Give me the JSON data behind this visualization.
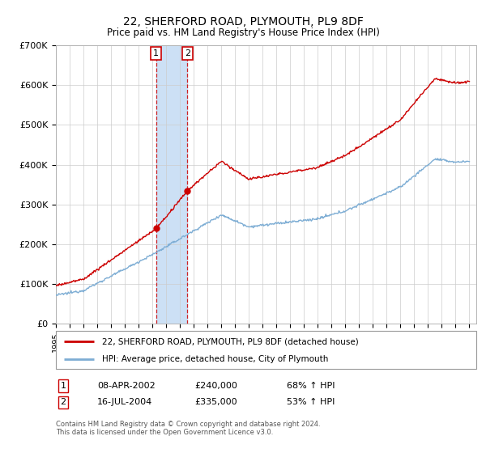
{
  "title": "22, SHERFORD ROAD, PLYMOUTH, PL9 8DF",
  "subtitle": "Price paid vs. HM Land Registry's House Price Index (HPI)",
  "legend_line1": "22, SHERFORD ROAD, PLYMOUTH, PL9 8DF (detached house)",
  "legend_line2": "HPI: Average price, detached house, City of Plymouth",
  "transaction1_date": "08-APR-2002",
  "transaction1_price": 240000,
  "transaction1_label": "68% ↑ HPI",
  "transaction2_date": "16-JUL-2004",
  "transaction2_price": 335000,
  "transaction2_label": "53% ↑ HPI",
  "footer": "Contains HM Land Registry data © Crown copyright and database right 2024.\nThis data is licensed under the Open Government Licence v3.0.",
  "hpi_color": "#7dadd4",
  "price_color": "#cc0000",
  "shading_color": "#cce0f5",
  "ylim": [
    0,
    700000
  ],
  "yticks": [
    0,
    100000,
    200000,
    300000,
    400000,
    500000,
    600000,
    700000
  ],
  "ytick_labels": [
    "£0",
    "£100K",
    "£200K",
    "£300K",
    "£400K",
    "£500K",
    "£600K",
    "£700K"
  ],
  "t1": 2002.27,
  "t2": 2004.54,
  "sale1_price": 240000,
  "sale2_price": 335000
}
